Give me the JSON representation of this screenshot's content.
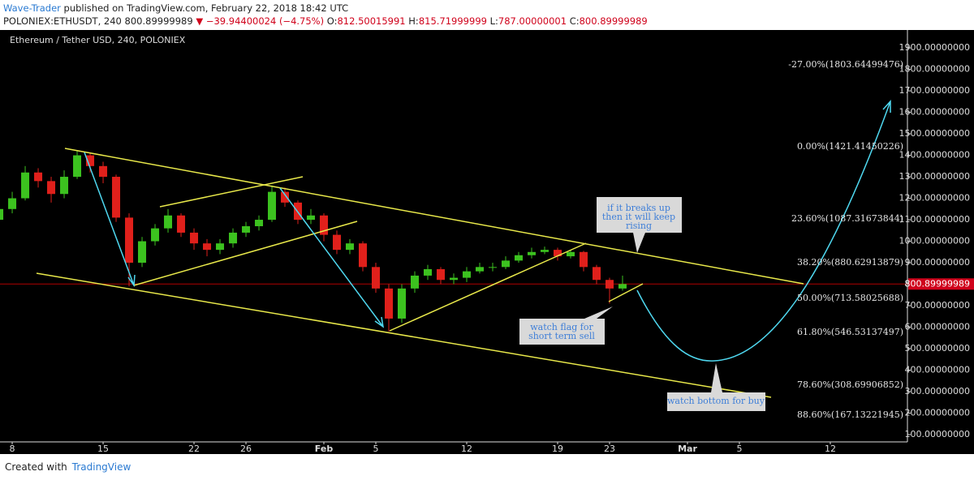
{
  "header": {
    "author": "Wave-Trader",
    "published": "published on TradingView.com, February 22, 2018 18:42 UTC",
    "symbol": "POLONIEX:ETHUSDT, 240",
    "price": "800.89999989",
    "arrow": "▼",
    "change": "−39.94400024 (−4.75%)",
    "ohlc": [
      {
        "label": "O:",
        "value": "812.50015991"
      },
      {
        "label": "H:",
        "value": "815.71999999"
      },
      {
        "label": "L:",
        "value": "787.00000001"
      },
      {
        "label": "C:",
        "value": "800.89999989"
      }
    ]
  },
  "chart_data": {
    "type": "candlestick",
    "title": "Ethereum / Tether USD, 240, POLONIEX",
    "x": [
      7,
      8,
      9,
      10,
      11,
      12,
      13,
      14,
      15,
      16,
      17,
      18,
      19,
      20,
      21,
      22,
      23,
      24,
      25,
      26,
      27,
      28,
      29,
      30,
      31,
      32,
      33,
      34,
      35,
      36,
      37,
      38,
      39,
      40,
      41,
      42,
      43,
      44,
      45,
      46,
      47,
      48,
      49,
      50,
      51,
      52,
      53,
      54,
      55
    ],
    "open": [
      1100,
      1150,
      1200,
      1320,
      1280,
      1220,
      1300,
      1400,
      1350,
      1300,
      1110,
      900,
      1000,
      1060,
      1120,
      1040,
      990,
      960,
      990,
      1040,
      1070,
      1100,
      1230,
      1180,
      1100,
      1120,
      1030,
      960,
      990,
      880,
      780,
      640,
      780,
      840,
      870,
      820,
      830,
      860,
      880,
      880,
      910,
      935,
      950,
      960,
      930,
      950,
      880,
      820,
      780
    ],
    "high": [
      1180,
      1230,
      1350,
      1340,
      1300,
      1330,
      1420,
      1410,
      1370,
      1310,
      1130,
      1020,
      1080,
      1150,
      1130,
      1060,
      1010,
      1010,
      1060,
      1090,
      1120,
      1260,
      1250,
      1190,
      1150,
      1130,
      1050,
      1010,
      1000,
      900,
      800,
      800,
      860,
      890,
      880,
      850,
      880,
      900,
      900,
      930,
      950,
      970,
      975,
      970,
      960,
      955,
      890,
      830,
      840
    ],
    "low": [
      1080,
      1130,
      1190,
      1250,
      1180,
      1200,
      1290,
      1320,
      1270,
      1090,
      790,
      880,
      980,
      1040,
      1020,
      960,
      930,
      940,
      970,
      1020,
      1050,
      1090,
      1160,
      1080,
      1080,
      1000,
      940,
      940,
      860,
      760,
      580,
      620,
      760,
      820,
      800,
      800,
      810,
      850,
      860,
      870,
      900,
      920,
      940,
      910,
      920,
      860,
      800,
      710,
      770
    ],
    "close": [
      1150,
      1200,
      1320,
      1280,
      1220,
      1300,
      1400,
      1350,
      1300,
      1110,
      900,
      1000,
      1060,
      1120,
      1040,
      990,
      960,
      990,
      1040,
      1070,
      1100,
      1230,
      1180,
      1100,
      1120,
      1030,
      960,
      990,
      880,
      780,
      640,
      780,
      840,
      870,
      820,
      830,
      860,
      880,
      880,
      910,
      935,
      950,
      960,
      930,
      950,
      880,
      820,
      780,
      800.9
    ],
    "up_color": "#3cc21f",
    "down_color": "#e0201b",
    "xlim": [
      7.06,
      76.94
    ],
    "xticks": [
      8,
      15,
      22,
      26,
      {
        "value": 32,
        "label": "Feb"
      },
      {
        "value": 36,
        "label": "5"
      },
      {
        "value": 43,
        "label": "12"
      },
      {
        "value": 50,
        "label": "19"
      },
      {
        "value": 54,
        "label": "23"
      },
      {
        "value": 60,
        "label": "Mar"
      },
      {
        "value": 64,
        "label": "5"
      },
      {
        "value": 71,
        "label": "12"
      }
    ],
    "ylim": [
      66,
      1972
    ],
    "yticks": [
      {
        "value": 100,
        "label": "100.00000000"
      },
      {
        "value": 200,
        "label": "200.00000000"
      },
      {
        "value": 300,
        "label": "300.00000000"
      },
      {
        "value": 400,
        "label": "400.00000000"
      },
      {
        "value": 500,
        "label": "500.00000000"
      },
      {
        "value": 600,
        "label": "600.00000000"
      },
      {
        "value": 700,
        "label": "700.00000000"
      },
      {
        "value": 800,
        "label": "800.00000000"
      },
      {
        "value": 900,
        "label": "900.00000000"
      },
      {
        "value": 1000,
        "label": "1000.00000000"
      },
      {
        "value": 1100,
        "label": "1100.00000000"
      },
      {
        "value": 1200,
        "label": "1200.00000000"
      },
      {
        "value": 1300,
        "label": "1300.00000000"
      },
      {
        "value": 1400,
        "label": "1400.00000000"
      },
      {
        "value": 1500,
        "label": "1500.00000000"
      },
      {
        "value": 1600,
        "label": "1600.00000000"
      },
      {
        "value": 1700,
        "label": "1700.00000000"
      },
      {
        "value": 1800,
        "label": "1800.00000000"
      },
      {
        "value": 1900,
        "label": "1900.00000000"
      }
    ],
    "last_price": {
      "value": 800.89999989,
      "label": "800.89999989"
    },
    "fib_levels": [
      "-27.00%(1803.64499476)",
      "0.00%(1421.41450226)",
      "23.60%(1087.31673844)",
      "38.20%(880.62913879)",
      "50.00%(713.58025688)",
      "61.80%(546.53137497)",
      "78.60%(308.69906852)",
      "88.60%(167.13221945)"
    ],
    "callouts": [
      {
        "lines": [
          "if it breaks up",
          "then it will keep",
          "rising"
        ]
      },
      {
        "lines": [
          "watch flag for",
          "short term sell"
        ]
      },
      {
        "lines": [
          "watch bottom for buy"
        ]
      }
    ]
  },
  "footer": {
    "created_with": "Created with",
    "brand": "TradingView"
  }
}
